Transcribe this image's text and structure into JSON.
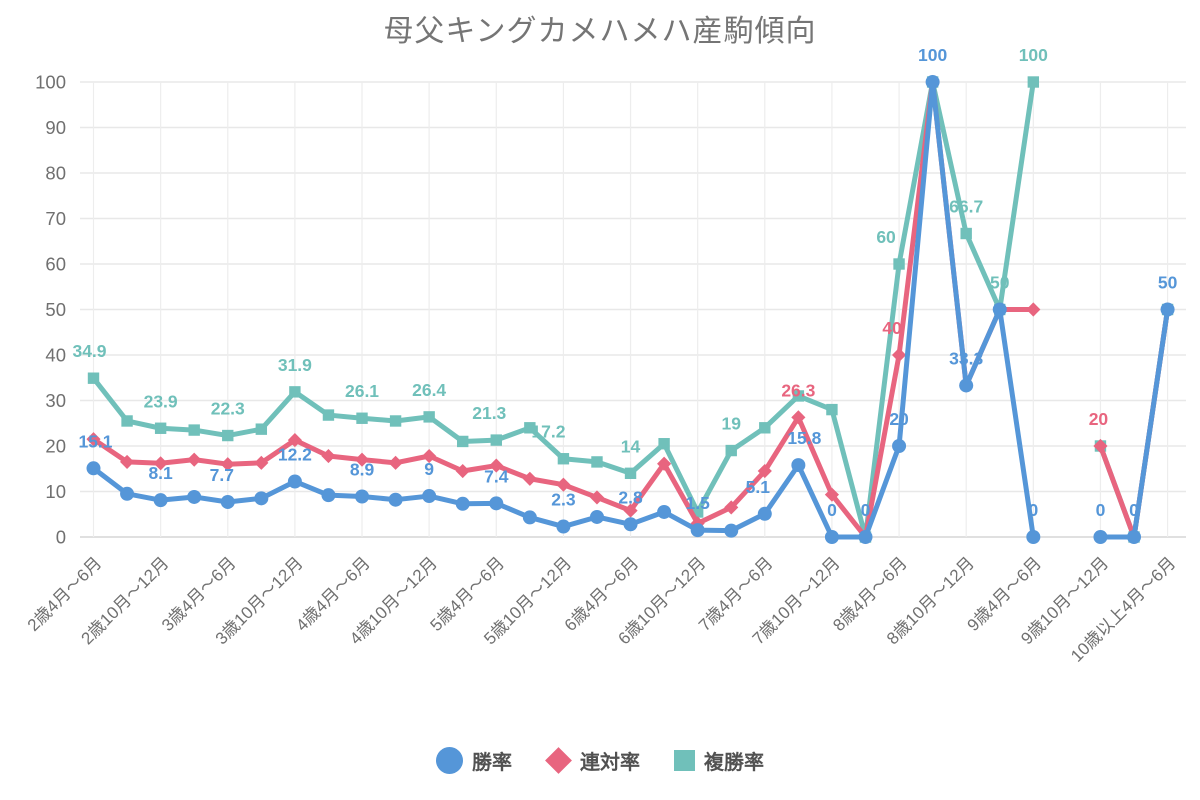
{
  "chart_data": {
    "type": "line",
    "title": "母父キングカメハメハ産駒傾向",
    "ylim": [
      0,
      100
    ],
    "y_ticks": [
      0,
      10,
      20,
      30,
      40,
      50,
      60,
      70,
      80,
      90,
      100
    ],
    "grid": "on",
    "legend_position": "bottom",
    "x_labels": [
      "2歳4月～6月",
      "2歳10月～12月",
      "3歳4月～6月",
      "3歳10月～12月",
      "4歳4月～6月",
      "4歳10月～12月",
      "5歳4月～6月",
      "5歳10月～12月",
      "6歳4月～6月",
      "6歳10月～12月",
      "7歳4月～6月",
      "7歳10月～12月",
      "8歳4月～6月",
      "8歳10月～12月",
      "9歳4月～6月",
      "9歳10月～12月",
      "10歳以上4月～6月"
    ],
    "x_points_per_label": 2,
    "series": [
      {
        "name": "勝率",
        "marker": "circle",
        "color": "#5596d8",
        "values": [
          15.1,
          9.5,
          8.1,
          8.8,
          7.7,
          8.5,
          12.2,
          9.2,
          8.9,
          8.2,
          9,
          7.3,
          7.4,
          4.3,
          2.3,
          4.4,
          2.8,
          5.5,
          1.5,
          1.4,
          5.1,
          15.8,
          0,
          0,
          20,
          100,
          33.3,
          50,
          0,
          null,
          0,
          0,
          50
        ],
        "point_labels": [
          "15.1",
          null,
          "8.1",
          null,
          "7.7",
          null,
          "12.2",
          null,
          "8.9",
          null,
          "9",
          null,
          "7.4",
          null,
          "2.3",
          null,
          "2.8",
          null,
          "1.5",
          null,
          "5.1",
          "15.8",
          "0",
          "0",
          "20",
          "100",
          "33.3",
          null,
          "0",
          null,
          "0",
          "0",
          "50"
        ]
      },
      {
        "name": "連対率",
        "marker": "diamond",
        "color": "#e8657f",
        "values": [
          21.5,
          16.5,
          16.2,
          17,
          16,
          16.3,
          21.3,
          17.8,
          17,
          16.3,
          17.8,
          14.5,
          15.7,
          12.8,
          11.5,
          8.7,
          5.8,
          16.1,
          3,
          6.5,
          14.5,
          26.3,
          9.3,
          0,
          40,
          100,
          33.3,
          50,
          50,
          null,
          20,
          0,
          50
        ],
        "point_labels": [
          null,
          null,
          null,
          null,
          null,
          null,
          null,
          null,
          null,
          null,
          null,
          null,
          null,
          null,
          null,
          null,
          null,
          null,
          null,
          null,
          null,
          "26.3",
          null,
          null,
          "40",
          null,
          null,
          null,
          null,
          null,
          "20",
          null,
          null
        ]
      },
      {
        "name": "複勝率",
        "marker": "square",
        "color": "#70c0ba",
        "values": [
          34.9,
          25.5,
          23.9,
          23.5,
          22.3,
          23.7,
          31.9,
          26.8,
          26.1,
          25.5,
          26.4,
          21,
          21.3,
          24,
          17.2,
          16.5,
          14,
          20.5,
          5.5,
          19,
          24,
          31,
          28,
          0,
          60,
          100,
          66.7,
          50,
          100,
          null,
          20,
          0,
          50
        ],
        "point_labels": [
          "34.9",
          null,
          "23.9",
          null,
          "22.3",
          null,
          "31.9",
          null,
          "26.1",
          null,
          "26.4",
          null,
          "21.3",
          null,
          "17.2",
          null,
          "14",
          null,
          null,
          "19",
          null,
          null,
          null,
          null,
          "60",
          null,
          "66.7",
          "50",
          "100",
          null,
          null,
          null,
          null
        ]
      }
    ]
  }
}
